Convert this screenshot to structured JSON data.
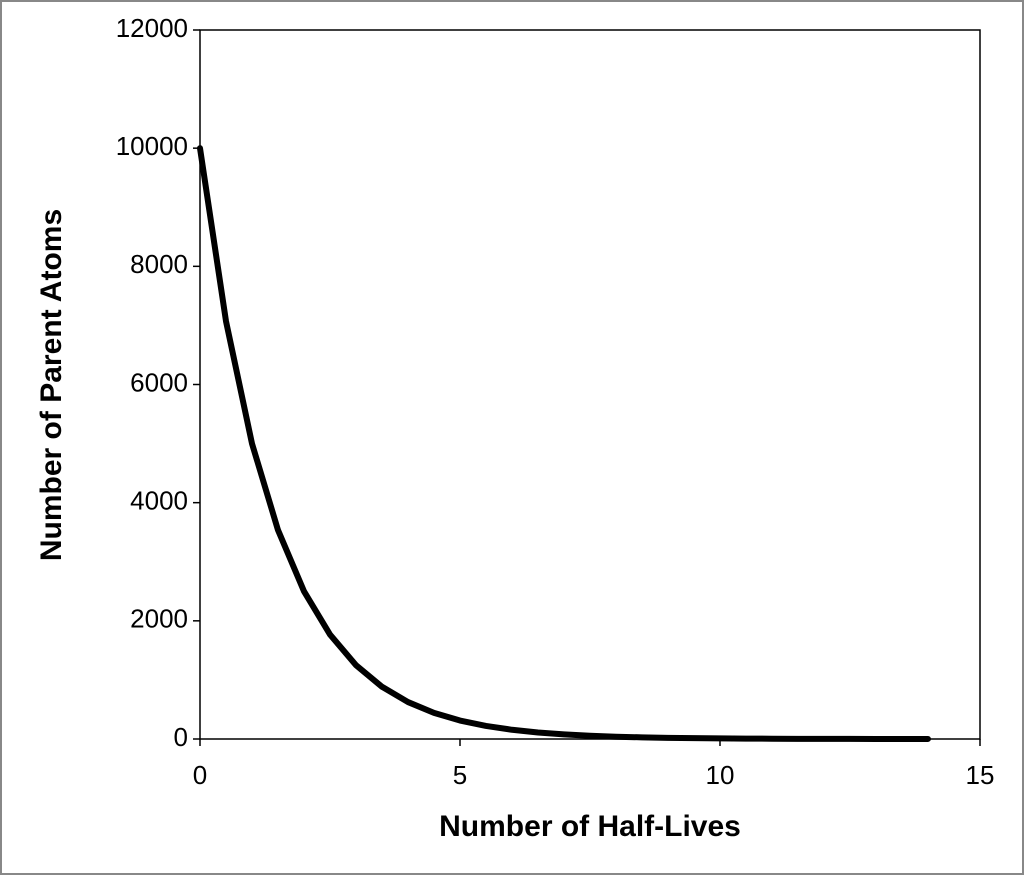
{
  "chart_data": {
    "type": "line",
    "x_label": "Number of Half-Lives",
    "y_label": "Number of Parent Atoms",
    "x": [
      0,
      0.5,
      1,
      1.5,
      2,
      2.5,
      3,
      3.5,
      4,
      4.5,
      5,
      5.5,
      6,
      6.5,
      7,
      7.5,
      8,
      8.5,
      9,
      9.5,
      10,
      10.5,
      11,
      11.5,
      12,
      12.5,
      13,
      13.5,
      14
    ],
    "series": [
      {
        "name": "Parent Atoms",
        "color": "#000000",
        "values": [
          10000,
          7071,
          5000,
          3536,
          2500,
          1768,
          1250,
          884,
          625,
          442,
          313,
          221,
          156,
          110,
          78,
          55,
          39,
          28,
          20,
          14,
          10,
          7,
          5,
          3,
          2,
          2,
          1,
          1,
          1
        ]
      }
    ],
    "xlim": [
      0,
      15
    ],
    "xticks": [
      0,
      5,
      10,
      15
    ],
    "ylim": [
      0,
      12000
    ],
    "yticks": [
      0,
      2000,
      4000,
      6000,
      8000,
      10000,
      12000
    ],
    "grid": false
  }
}
